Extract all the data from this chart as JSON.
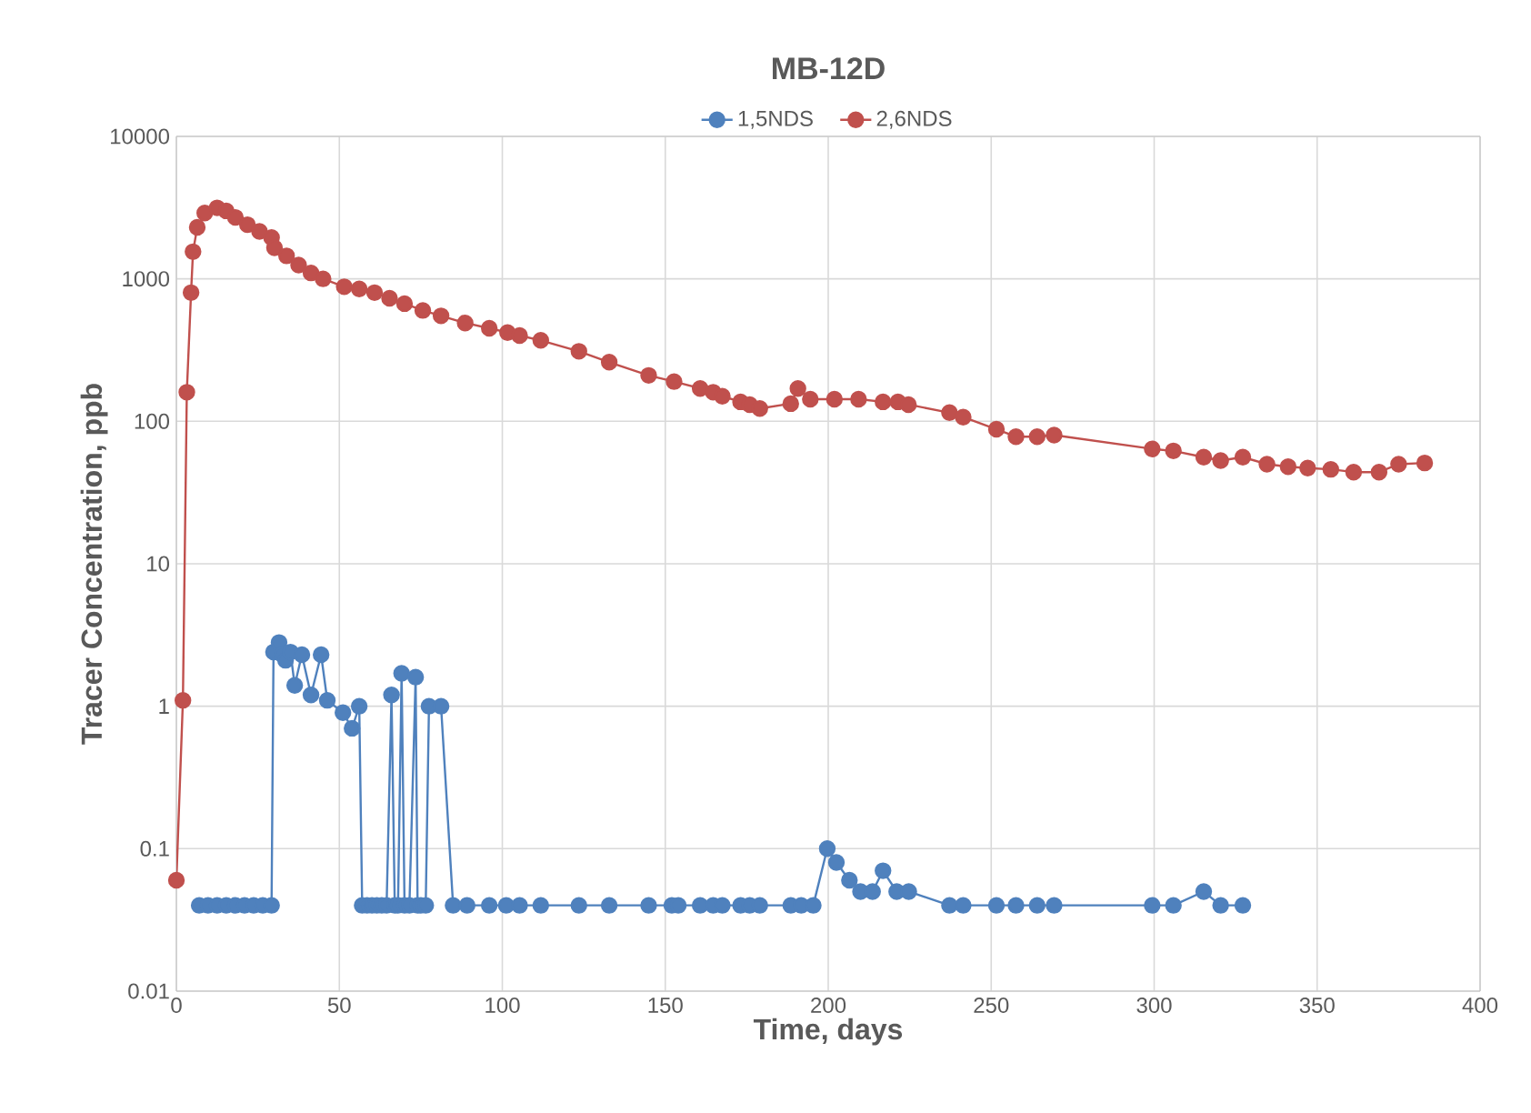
{
  "chart_data": {
    "type": "line",
    "title": "MB-12D",
    "xlabel": "Time, days",
    "ylabel": "Tracer Concentration, ppb",
    "xlim": [
      0,
      400
    ],
    "xticks": [
      0,
      50,
      100,
      150,
      200,
      250,
      300,
      350,
      400
    ],
    "ylim": [
      0.01,
      10000
    ],
    "yticks": [
      0.01,
      0.1,
      1,
      10,
      100,
      1000,
      10000
    ],
    "log": "y",
    "grid": true,
    "legend": "top",
    "marker": "circle",
    "line_style": "solid",
    "series": [
      {
        "name": "1,5NDS",
        "color": "#4f81bd",
        "x": [
          7,
          9.7,
          12.5,
          15.3,
          18.1,
          20.9,
          23.7,
          26.5,
          29.2,
          29.8,
          31.5,
          32.5,
          33.5,
          35,
          36.3,
          38.5,
          41.3,
          44.4,
          46.3,
          51.1,
          53.9,
          56.1,
          57,
          58.5,
          60,
          61.5,
          63,
          64.5,
          66,
          67,
          68,
          69.1,
          70,
          71.5,
          73.4,
          74,
          75,
          76.5,
          77.5,
          81.2,
          84.9,
          89.2,
          96,
          101.2,
          105.3,
          111.8,
          123.5,
          132.8,
          144.9,
          152,
          154,
          160.7,
          164.7,
          167.5,
          173.1,
          175.9,
          179,
          188.5,
          191.7,
          195.4,
          199.7,
          202.5,
          206.5,
          209.9,
          213.6,
          216.8,
          221,
          224.7,
          237.2,
          241.4,
          251.6,
          257.6,
          264.1,
          269.3,
          299.4,
          305.9,
          315.2,
          320.4,
          327.2
        ],
        "values": [
          0.04,
          0.04,
          0.04,
          0.04,
          0.04,
          0.04,
          0.04,
          0.04,
          0.04,
          2.4,
          2.8,
          2.3,
          2.1,
          2.4,
          1.4,
          2.3,
          1.2,
          2.3,
          1.1,
          0.9,
          0.7,
          1.0,
          0.04,
          0.04,
          0.04,
          0.04,
          0.04,
          0.04,
          1.2,
          0.04,
          0.04,
          1.7,
          0.04,
          0.04,
          1.6,
          0.04,
          0.04,
          0.04,
          1.0,
          1.0,
          0.04,
          0.04,
          0.04,
          0.04,
          0.04,
          0.04,
          0.04,
          0.04,
          0.04,
          0.04,
          0.04,
          0.04,
          0.04,
          0.04,
          0.04,
          0.04,
          0.04,
          0.04,
          0.04,
          0.04,
          0.1,
          0.08,
          0.06,
          0.05,
          0.05,
          0.07,
          0.05,
          0.05,
          0.04,
          0.04,
          0.04,
          0.04,
          0.04,
          0.04,
          0.04,
          0.04,
          0.05,
          0.04,
          0.04
        ]
      },
      {
        "name": "2,6NDS",
        "color": "#c0504d",
        "x": [
          0,
          2,
          3.2,
          4.5,
          5.1,
          6.4,
          8.7,
          12.5,
          15.3,
          18.1,
          21.8,
          25.5,
          29.2,
          30.1,
          33.8,
          37.5,
          41.3,
          45,
          51.5,
          56.1,
          60.8,
          65.4,
          70,
          75.6,
          81.2,
          88.6,
          96,
          101.6,
          105.3,
          111.8,
          123.5,
          132.8,
          144.9,
          152.7,
          160.7,
          164.7,
          167.5,
          173.1,
          175.9,
          179,
          188.5,
          190.7,
          194.5,
          201.9,
          209.3,
          216.8,
          221.4,
          224.6,
          237.2,
          241.4,
          251.6,
          257.6,
          264.1,
          269.3,
          299.4,
          305.9,
          315.2,
          320.4,
          327.2,
          334.6,
          341.1,
          347.1,
          354.2,
          361.2,
          369,
          375,
          383
        ],
        "values": [
          0.06,
          1.1,
          160,
          800,
          1550,
          2300,
          2900,
          3150,
          3000,
          2700,
          2400,
          2150,
          1950,
          1650,
          1450,
          1250,
          1100,
          1000,
          880,
          850,
          800,
          730,
          670,
          600,
          550,
          490,
          450,
          420,
          400,
          370,
          310,
          260,
          210,
          190,
          170,
          160,
          150,
          137,
          131,
          123,
          133,
          170,
          143,
          143,
          143,
          137,
          137,
          131,
          115,
          107,
          88,
          78,
          78,
          80,
          64,
          62,
          56,
          53,
          56,
          50,
          48,
          47,
          46,
          44,
          44,
          50,
          51
        ]
      }
    ]
  }
}
